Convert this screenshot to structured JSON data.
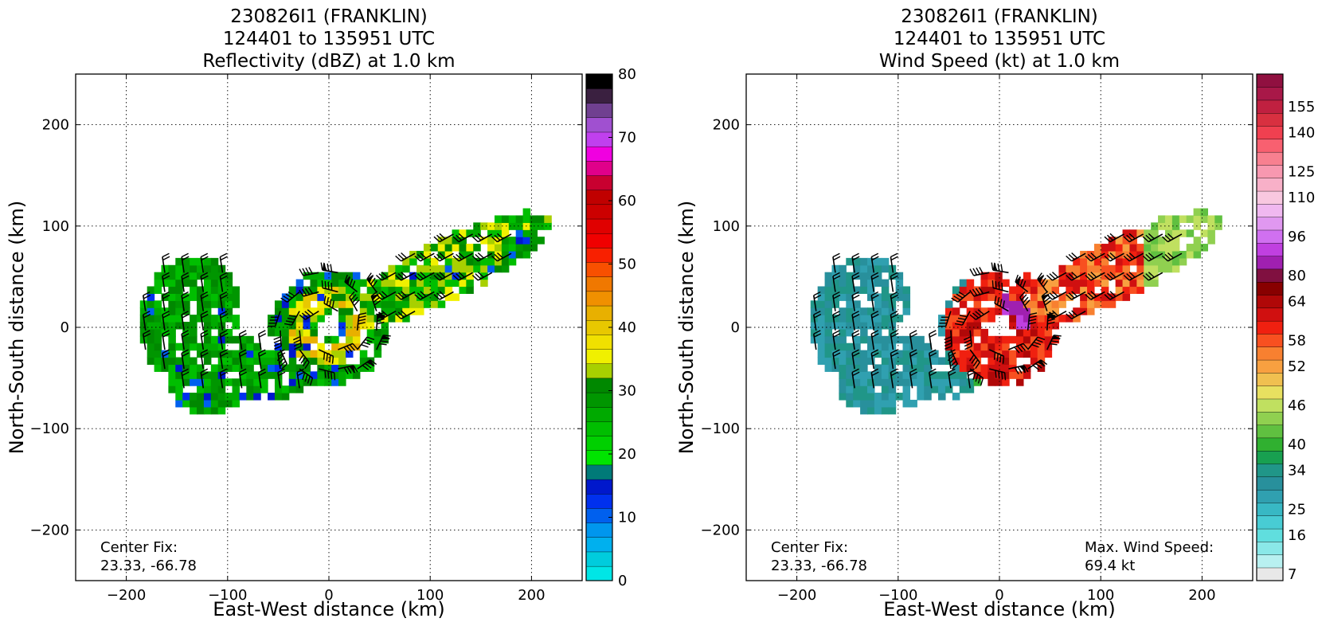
{
  "chart_data": [
    {
      "type": "heatmap",
      "title_lines": [
        "230826I1 (FRANKLIN)",
        "124401 to 135951 UTC",
        "Reflectivity (dBZ) at 1.0 km"
      ],
      "xlabel": "East-West distance (km)",
      "ylabel": "North-South distance (km)",
      "xlim": [
        -250,
        250
      ],
      "ylim": [
        -250,
        250
      ],
      "xticks": [
        -200,
        -100,
        0,
        100,
        200
      ],
      "yticks": [
        -200,
        -100,
        0,
        100,
        200
      ],
      "xtick_labels": [
        "−200",
        "−100",
        "0",
        "100",
        "200"
      ],
      "ytick_labels": [
        "−200",
        "−100",
        "0",
        "100",
        "200"
      ],
      "grid": true,
      "annotation_lines": [
        "Center Fix:",
        "23.33, -66.78"
      ],
      "colorbar": {
        "min": 0,
        "max": 80,
        "step": 5,
        "ticks": [
          0,
          10,
          20,
          30,
          40,
          50,
          60,
          70,
          80
        ],
        "tick_labels": [
          "0",
          "10",
          "20",
          "30",
          "40",
          "50",
          "60",
          "70",
          "80"
        ],
        "colors": [
          "#00e6e6",
          "#00ccdd",
          "#00b0ee",
          "#0096ee",
          "#0060ee",
          "#0030ee",
          "#0018cc",
          "#007a78",
          "#00e400",
          "#00d000",
          "#00be00",
          "#00aa00",
          "#009600",
          "#008800",
          "#a8d000",
          "#f0f000",
          "#f0e000",
          "#e8c800",
          "#e8b000",
          "#f09000",
          "#f07800",
          "#f85000",
          "#f82000",
          "#f00000",
          "#e00000",
          "#cc0000",
          "#c00000",
          "#c80030",
          "#e0008a",
          "#f000e0",
          "#c040ee",
          "#a050d0",
          "#704090",
          "#3a2040",
          "#000000"
        ]
      }
    },
    {
      "type": "heatmap",
      "title_lines": [
        "230826I1 (FRANKLIN)",
        "124401 to 135951 UTC",
        "Wind Speed (kt) at 1.0 km"
      ],
      "xlabel": "East-West distance (km)",
      "ylabel": "North-South distance (km)",
      "xlim": [
        -250,
        250
      ],
      "ylim": [
        -250,
        250
      ],
      "xticks": [
        -200,
        -100,
        0,
        100,
        200
      ],
      "yticks": [
        -200,
        -100,
        0,
        100,
        200
      ],
      "xtick_labels": [
        "−200",
        "−100",
        "0",
        "100",
        "200"
      ],
      "ytick_labels": [
        "−200",
        "−100",
        "0",
        "100",
        "200"
      ],
      "grid": true,
      "annotation_lines": [
        "Center Fix:",
        "23.33, -66.78"
      ],
      "max_wind_lines": [
        "Max. Wind Speed:",
        "69.4 kt"
      ],
      "colorbar": {
        "tick_labels": [
          "7",
          "16",
          "25",
          "34",
          "40",
          "46",
          "52",
          "58",
          "64",
          "80",
          "96",
          "110",
          "125",
          "140",
          "155"
        ],
        "colors": [
          "#e8e8e8",
          "#b8f0f0",
          "#8ae8e8",
          "#60dede",
          "#48ccd4",
          "#38b8c4",
          "#30a0b0",
          "#28909c",
          "#209688",
          "#18a050",
          "#30b030",
          "#60c040",
          "#90d050",
          "#c0e060",
          "#e8e060",
          "#f0c050",
          "#f8a040",
          "#f88030",
          "#f85020",
          "#f02010",
          "#d01010",
          "#b00808",
          "#880000",
          "#801040",
          "#a020b0",
          "#c040e0",
          "#d070f0",
          "#e098f0",
          "#f0b8f0",
          "#f8c8e0",
          "#f8b0c8",
          "#f898b0",
          "#f88090",
          "#f86070",
          "#f04050",
          "#d83040",
          "#c02040",
          "#a81848",
          "#901040"
        ]
      }
    }
  ]
}
